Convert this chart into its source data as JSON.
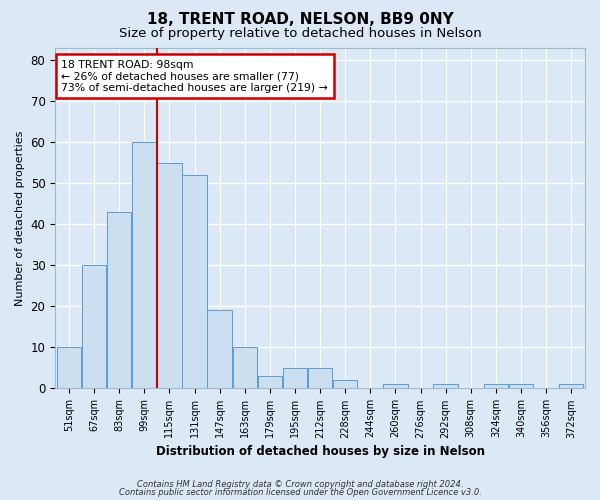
{
  "title1": "18, TRENT ROAD, NELSON, BB9 0NY",
  "title2": "Size of property relative to detached houses in Nelson",
  "xlabel": "Distribution of detached houses by size in Nelson",
  "ylabel": "Number of detached properties",
  "bins": [
    "51sqm",
    "67sqm",
    "83sqm",
    "99sqm",
    "115sqm",
    "131sqm",
    "147sqm",
    "163sqm",
    "179sqm",
    "195sqm",
    "212sqm",
    "228sqm",
    "244sqm",
    "260sqm",
    "276sqm",
    "292sqm",
    "308sqm",
    "324sqm",
    "340sqm",
    "356sqm",
    "372sqm"
  ],
  "values": [
    10,
    30,
    43,
    60,
    55,
    52,
    19,
    10,
    3,
    5,
    5,
    2,
    0,
    1,
    0,
    1,
    0,
    1,
    1,
    0,
    1
  ],
  "bar_color": "#ccdff0",
  "bar_edge_color": "#5b9bd5",
  "vline_x_index": 3,
  "vline_color": "#cc0000",
  "annotation_text": "18 TRENT ROAD: 98sqm\n← 26% of detached houses are smaller (77)\n73% of semi-detached houses are larger (219) →",
  "annotation_box_color": "white",
  "annotation_box_edge": "#cc0000",
  "ylim": [
    0,
    83
  ],
  "yticks": [
    0,
    10,
    20,
    30,
    40,
    50,
    60,
    70,
    80
  ],
  "footer1": "Contains HM Land Registry data © Crown copyright and database right 2024.",
  "footer2": "Contains public sector information licensed under the Open Government Licence v3.0.",
  "bg_color": "#dce8f5",
  "plot_bg_color": "#dce8f5",
  "grid_color": "white",
  "title1_fontsize": 11,
  "title2_fontsize": 9.5
}
